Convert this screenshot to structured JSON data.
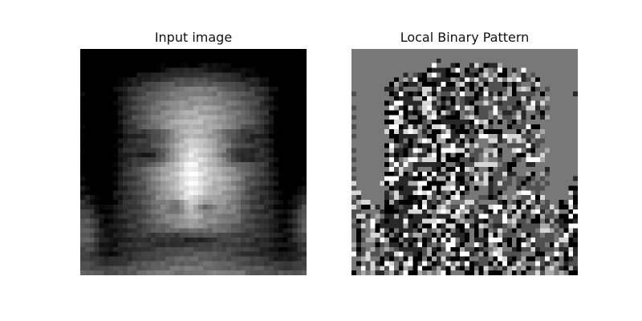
{
  "figure": {
    "panels": [
      {
        "title": "Input image"
      },
      {
        "title": "Local Binary Pattern"
      }
    ]
  }
}
